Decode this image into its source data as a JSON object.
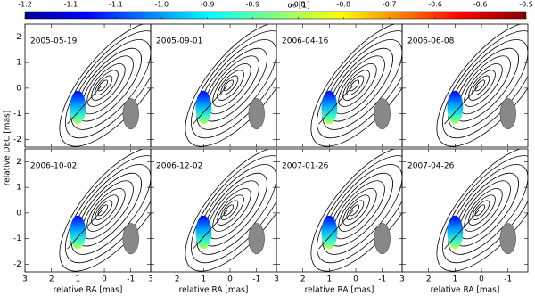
{
  "chart_data": {
    "type": "map-panels",
    "colorbar_label": "α₀ [1]",
    "clim": [
      -1.2,
      -0.5
    ],
    "cticks": [
      {
        "value": -1.2,
        "label": "-1.2"
      },
      {
        "value": -1.136,
        "label": "-1.1"
      },
      {
        "value": -1.073,
        "label": "-1.1"
      },
      {
        "value": -1.009,
        "label": "-1.0"
      },
      {
        "value": -0.945,
        "label": "-0.9"
      },
      {
        "value": -0.882,
        "label": "-0.9"
      },
      {
        "value": -0.818,
        "label": "-0.8"
      },
      {
        "value": -0.755,
        "label": "-0.8"
      },
      {
        "value": -0.691,
        "label": "-0.7"
      },
      {
        "value": -0.627,
        "label": "-0.6"
      },
      {
        "value": -0.564,
        "label": "-0.6"
      },
      {
        "value": -0.5,
        "label": "-0.5"
      }
    ],
    "panels": [
      "2005-05-19",
      "2005-09-01",
      "2006-04-16",
      "2006-06-08",
      "2006-10-02",
      "2006-12-02",
      "2007-01-26",
      "2007-04-26"
    ],
    "xlabel": "relative RA [mas]",
    "ylabel": "relative DEC [mas]",
    "xlim": [
      3,
      -1.75
    ],
    "xticks": [
      3,
      2,
      1,
      0,
      -1
    ],
    "ylim": [
      -2.3,
      2.5
    ],
    "yticks": [
      2,
      1,
      0,
      -1,
      -2
    ]
  }
}
